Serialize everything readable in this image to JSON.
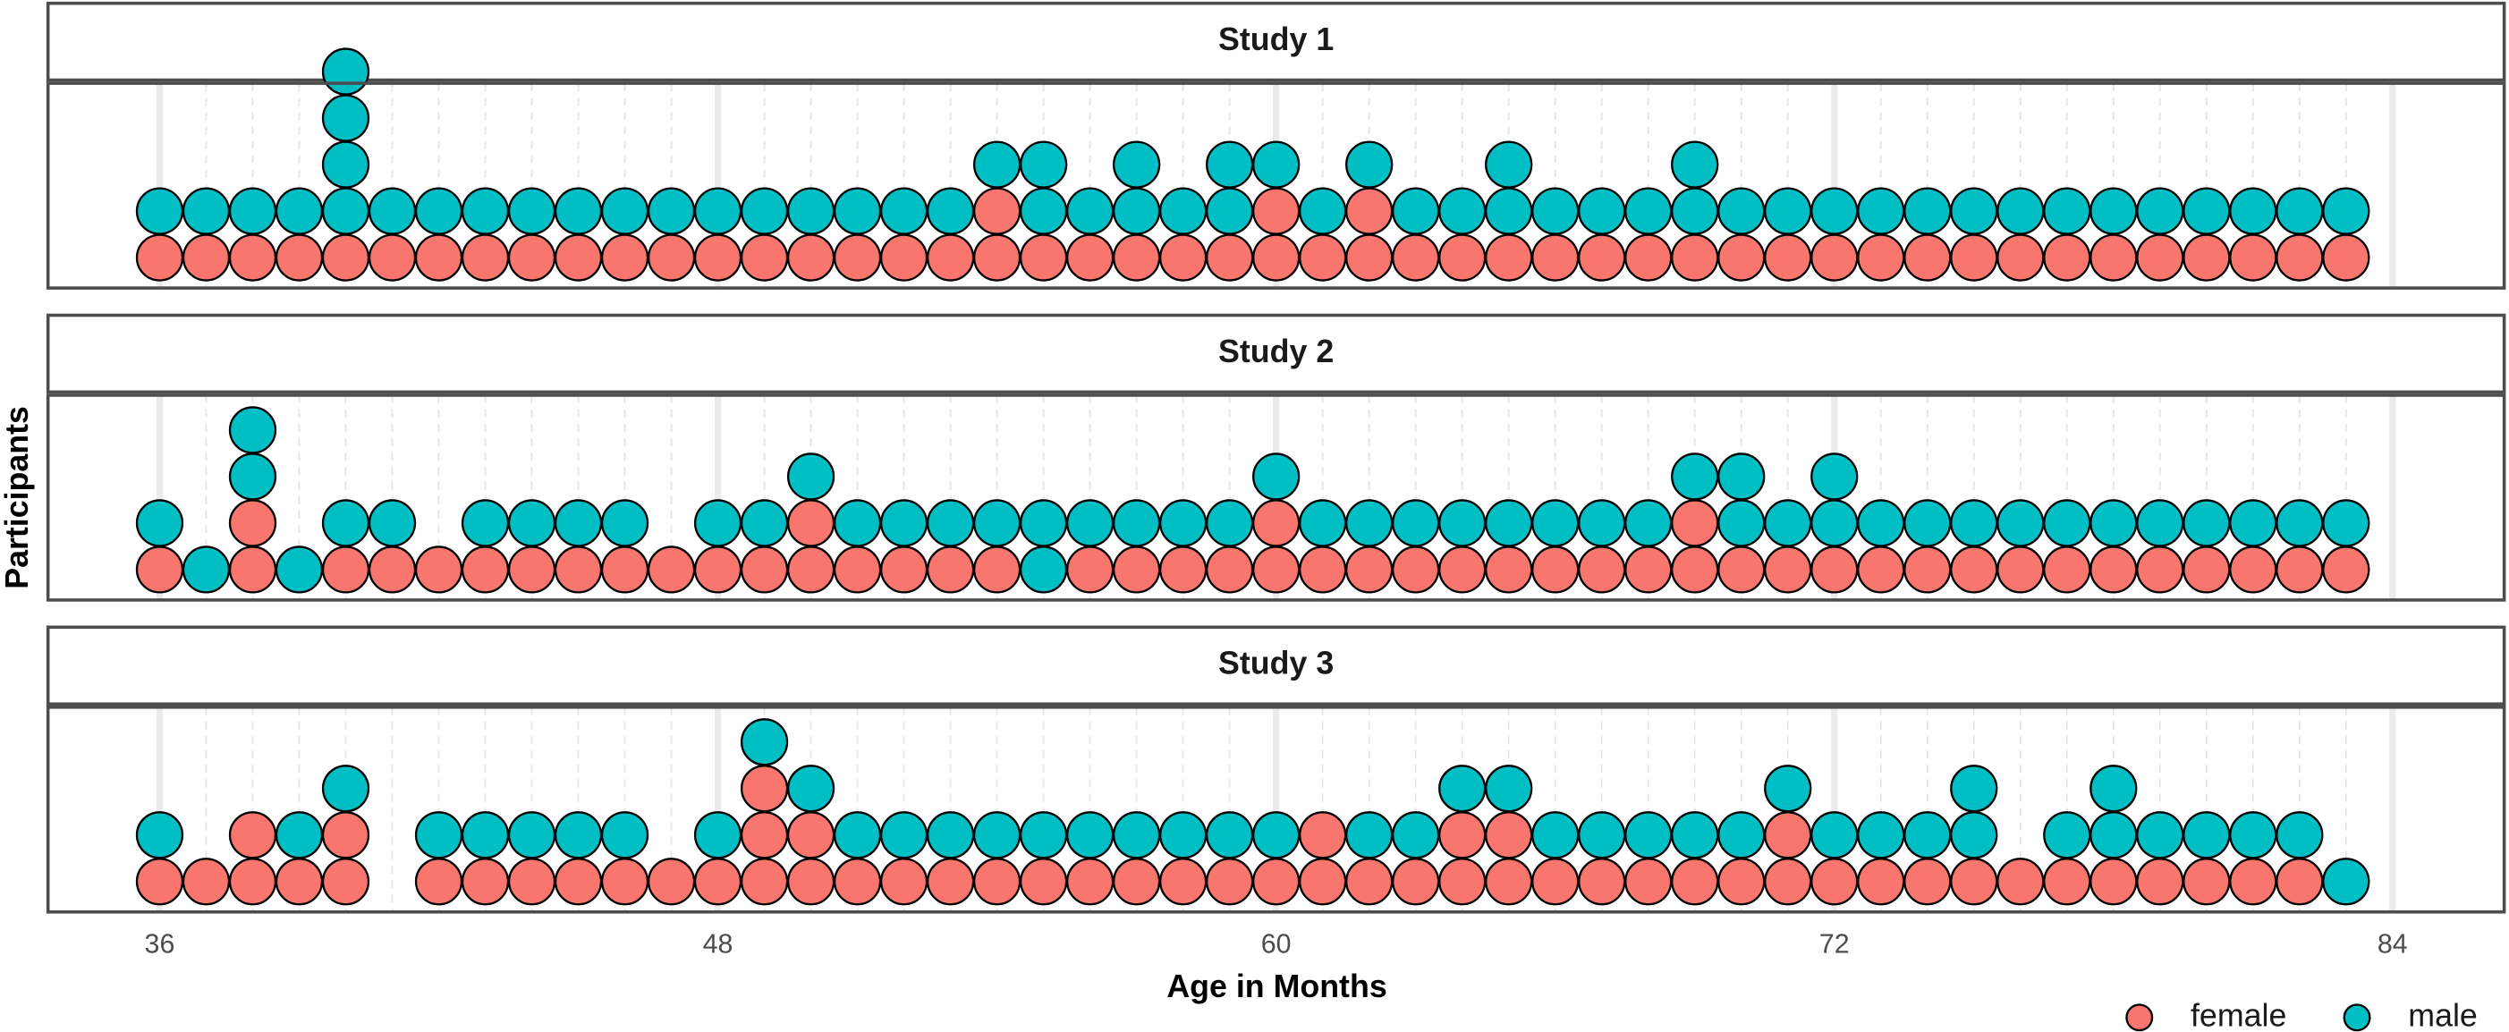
{
  "chart_data": {
    "type": "dotplot",
    "xlabel": "Age in Months",
    "ylabel": "Participants",
    "x": [
      36,
      37,
      38,
      39,
      40,
      41,
      42,
      43,
      44,
      45,
      46,
      47,
      48,
      49,
      50,
      51,
      52,
      53,
      54,
      55,
      56,
      57,
      58,
      59,
      60,
      61,
      62,
      63,
      64,
      65,
      66,
      67,
      68,
      69,
      70,
      71,
      72,
      73,
      74,
      75,
      76,
      77,
      78,
      79,
      80,
      81,
      82,
      83
    ],
    "xlim": [
      33.6,
      86.4
    ],
    "xticks": [
      36,
      48,
      60,
      72,
      84
    ],
    "grid": true,
    "series": [
      {
        "name": "female",
        "color": "#f8766d"
      },
      {
        "name": "male",
        "color": "#00bfc4"
      }
    ],
    "panels": [
      {
        "title": "Study 1",
        "values": [
          [
            1,
            1,
            1,
            1,
            1,
            1,
            1,
            1,
            1,
            1,
            1,
            1,
            1,
            1,
            1,
            1,
            1,
            1,
            2,
            1,
            1,
            1,
            1,
            1,
            2,
            1,
            2,
            1,
            1,
            1,
            1,
            1,
            1,
            1,
            1,
            1,
            1,
            1,
            1,
            1,
            1,
            1,
            1,
            1,
            1,
            1,
            1,
            1
          ],
          [
            1,
            1,
            1,
            1,
            4,
            1,
            1,
            1,
            1,
            1,
            1,
            1,
            1,
            1,
            1,
            1,
            1,
            1,
            1,
            2,
            1,
            2,
            1,
            2,
            1,
            1,
            1,
            1,
            1,
            2,
            1,
            1,
            1,
            2,
            1,
            1,
            1,
            1,
            1,
            1,
            1,
            1,
            1,
            1,
            1,
            1,
            1,
            1
          ]
        ]
      },
      {
        "title": "Study 2",
        "values": [
          [
            1,
            0,
            2,
            0,
            1,
            1,
            1,
            1,
            1,
            1,
            1,
            1,
            1,
            1,
            2,
            1,
            1,
            1,
            1,
            0,
            1,
            1,
            1,
            1,
            2,
            1,
            1,
            1,
            1,
            1,
            1,
            1,
            1,
            2,
            1,
            1,
            1,
            1,
            1,
            1,
            1,
            1,
            1,
            1,
            1,
            1,
            1,
            1
          ],
          [
            1,
            1,
            2,
            1,
            1,
            1,
            0,
            1,
            1,
            1,
            1,
            0,
            1,
            1,
            1,
            1,
            1,
            1,
            1,
            2,
            1,
            1,
            1,
            1,
            1,
            1,
            1,
            1,
            1,
            1,
            1,
            1,
            1,
            1,
            2,
            1,
            2,
            1,
            1,
            1,
            1,
            1,
            1,
            1,
            1,
            1,
            1,
            1
          ]
        ]
      },
      {
        "title": "Study 3",
        "values": [
          [
            1,
            1,
            2,
            1,
            2,
            0,
            1,
            1,
            1,
            1,
            1,
            1,
            1,
            3,
            2,
            1,
            1,
            1,
            1,
            1,
            1,
            1,
            1,
            1,
            1,
            2,
            1,
            1,
            2,
            2,
            1,
            1,
            1,
            1,
            1,
            2,
            1,
            1,
            1,
            1,
            1,
            1,
            1,
            1,
            1,
            1,
            1,
            0
          ],
          [
            1,
            0,
            0,
            1,
            1,
            0,
            1,
            1,
            1,
            1,
            1,
            0,
            1,
            1,
            1,
            1,
            1,
            1,
            1,
            1,
            1,
            1,
            1,
            1,
            1,
            0,
            1,
            1,
            1,
            1,
            1,
            1,
            1,
            1,
            1,
            1,
            1,
            1,
            1,
            2,
            0,
            1,
            2,
            1,
            1,
            1,
            1,
            1
          ]
        ]
      }
    ]
  }
}
